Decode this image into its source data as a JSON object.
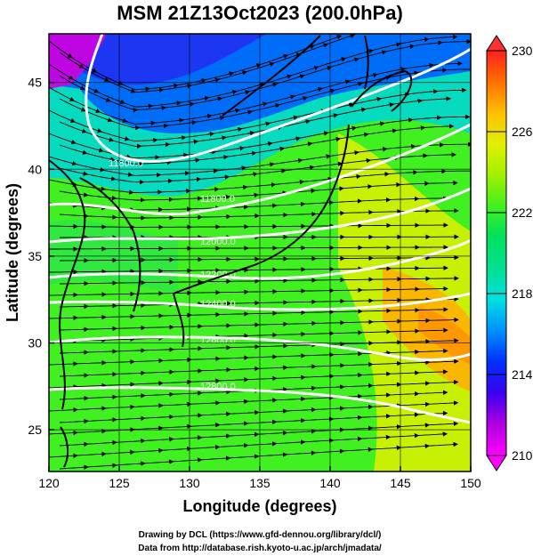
{
  "title": "MSM 21Z13Oct2023 (200.0hPa)",
  "x_axis": {
    "label": "Longitude (degrees)",
    "range": [
      120,
      150
    ],
    "ticks": [
      "120",
      "125",
      "130",
      "135",
      "140",
      "145",
      "150"
    ]
  },
  "y_axis": {
    "label": "Latitude  (degrees)",
    "range": [
      22.6,
      47.8
    ],
    "ticks": [
      "25",
      "30",
      "35",
      "40",
      "45"
    ]
  },
  "colorbar": {
    "range": [
      210,
      230
    ],
    "ticks": [
      "210",
      "214",
      "218",
      "222",
      "226",
      "230"
    ],
    "colors": [
      "#ff00ff",
      "#b000e0",
      "#3b00f0",
      "#0030ff",
      "#0090ff",
      "#00e0e0",
      "#00e090",
      "#00e060",
      "#40f020",
      "#a0f000",
      "#e0f000",
      "#ffc000",
      "#ff7000",
      "#ff2020"
    ]
  },
  "contours": {
    "color": "#ffffff",
    "labels": [
      "11800.0",
      "12000.0",
      "12200.0",
      "12400.0",
      "12600.0",
      "12800.0"
    ]
  },
  "credits": {
    "line1": "Drawing by DCL (https://www.gfd-dennou.org/library/dcl/)",
    "line2": "Data from http://database.rish.kyoto-u.ac.jp/arch/jmadata/"
  }
}
